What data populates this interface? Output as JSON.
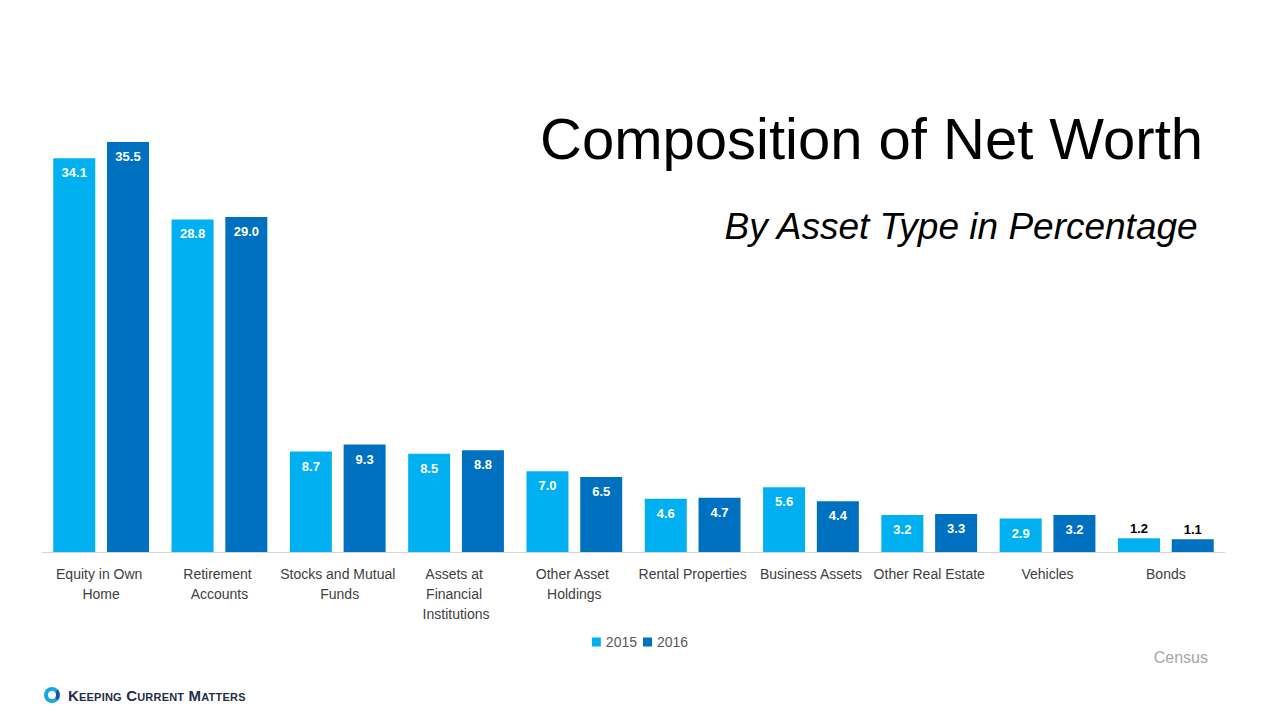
{
  "chart_data": {
    "type": "bar",
    "title": "Composition of Net Worth",
    "subtitle": "By Asset Type in Percentage",
    "categories": [
      "Equity in Own Home",
      "Retirement Accounts",
      "Stocks and Mutual Funds",
      "Assets at Financial Institutions",
      "Other Asset Holdings",
      "Rental Properties",
      "Business Assets",
      "Other Real Estate",
      "Vehicles",
      "Bonds"
    ],
    "series": [
      {
        "name": "2015",
        "color": "#00b0f0",
        "values": [
          34.1,
          28.8,
          8.7,
          8.5,
          7.0,
          4.6,
          5.6,
          3.2,
          2.9,
          1.2
        ],
        "value_labels": [
          "34.1",
          "28.8",
          "8.7",
          "8.5",
          "7.0",
          "4.6",
          "5.6",
          "3.2",
          "2.9",
          "1.2"
        ]
      },
      {
        "name": "2016",
        "color": "#0070c0",
        "values": [
          35.5,
          29.0,
          9.3,
          8.8,
          6.5,
          4.7,
          4.4,
          3.3,
          3.2,
          1.1
        ],
        "value_labels": [
          "35.5",
          "29.0",
          "9.3",
          "8.8",
          "6.5",
          "4.7",
          "4.4",
          "3.3",
          "3.2",
          "1.1"
        ]
      }
    ],
    "ylim": [
      0,
      35.5
    ],
    "tick_labels": "x",
    "grid": false,
    "data_labels": true,
    "legend": "bottom",
    "source": "Census",
    "brand": "Keeping Current Matters"
  }
}
